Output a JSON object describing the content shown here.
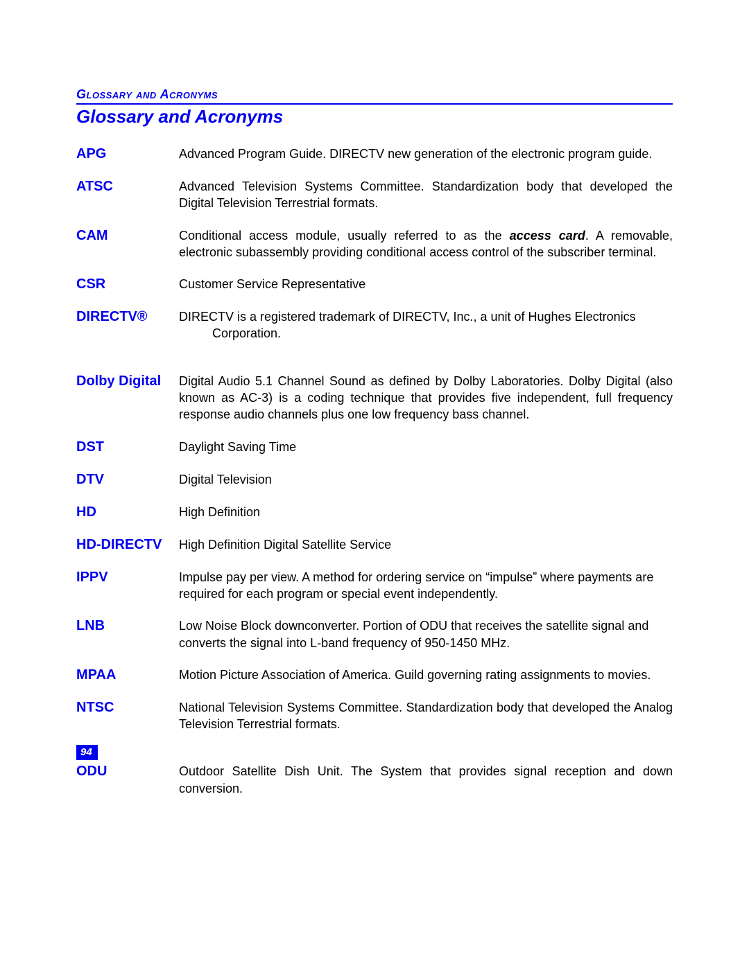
{
  "colors": {
    "accent": "#0000ee",
    "text": "#000000",
    "page_bg": "#ffffff",
    "page_number_bg": "#0000ee",
    "page_number_text": "#ffffff"
  },
  "typography": {
    "section_label_fontsize": 18,
    "section_title_fontsize": 26,
    "term_fontsize": 20,
    "def_fontsize": 18,
    "font_family": "Arial"
  },
  "header": {
    "section_label": "Glossary and Acronyms",
    "section_title": "Glossary and Acronyms"
  },
  "entries": [
    {
      "term": "APG",
      "definition": "Advanced Program Guide. DIRECTV new generation of the electronic program guide.",
      "justify": false,
      "gap": "normal"
    },
    {
      "term": "ATSC",
      "definition": "Advanced Television Systems Committee. Standardization body that developed the Digital Television Terrestrial formats.",
      "justify": true,
      "gap": "normal"
    },
    {
      "term": "CAM",
      "definition_pre": "Conditional access module, usually referred to as the ",
      "definition_em": "access card",
      "definition_post": ". A removable, electronic subassembly providing conditional access control of the subscriber terminal.",
      "justify": true,
      "gap": "normal"
    },
    {
      "term": "CSR",
      "definition": "Customer Service Representative",
      "justify": false,
      "gap": "normal"
    },
    {
      "term": "DIRECTV®",
      "definition_line1": "DIRECTV is a registered trademark of DIRECTV, Inc., a unit of Hughes Electronics",
      "definition_cont": "Corporation.",
      "justify": false,
      "gap": "large"
    },
    {
      "term": "Dolby Digital",
      "definition": "Digital Audio 5.1 Channel Sound as defined by Dolby Laboratories. Dolby Digital (also known as AC-3) is a coding technique that provides five independent, full frequency response audio channels plus one low frequency bass channel.",
      "justify": true,
      "gap": "normal"
    },
    {
      "term": "DST",
      "definition": "Daylight Saving Time",
      "justify": false,
      "gap": "normal"
    },
    {
      "term": "DTV",
      "definition": "Digital Television",
      "justify": false,
      "gap": "normal"
    },
    {
      "term": "HD",
      "definition": "High Definition",
      "justify": false,
      "gap": "normal"
    },
    {
      "term": "HD-DIRECTV",
      "definition": "High Definition Digital Satellite Service",
      "justify": false,
      "gap": "normal"
    },
    {
      "term": "IPPV",
      "definition": "Impulse pay per view. A method for ordering service on “impulse” where payments are required for each program or special event independently.",
      "justify": false,
      "gap": "normal"
    },
    {
      "term": "LNB",
      "definition": "Low Noise Block downconverter. Portion of ODU that receives the satellite signal and converts the signal into L-band frequency of 950-1450 MHz.",
      "justify": false,
      "gap": "normal"
    },
    {
      "term": "MPAA",
      "definition": "Motion Picture Association of America. Guild governing rating assignments to movies.",
      "justify": false,
      "gap": "normal"
    },
    {
      "term": "NTSC",
      "definition": "National Television Systems Committee. Standardization body that developed the Analog Television Terrestrial formats.",
      "justify": true,
      "gap": "large"
    },
    {
      "term": "ODU",
      "definition": "Outdoor Satellite Dish Unit. The System that provides signal reception and down conversion.",
      "justify": true,
      "gap": "normal"
    }
  ],
  "page_number": "94"
}
